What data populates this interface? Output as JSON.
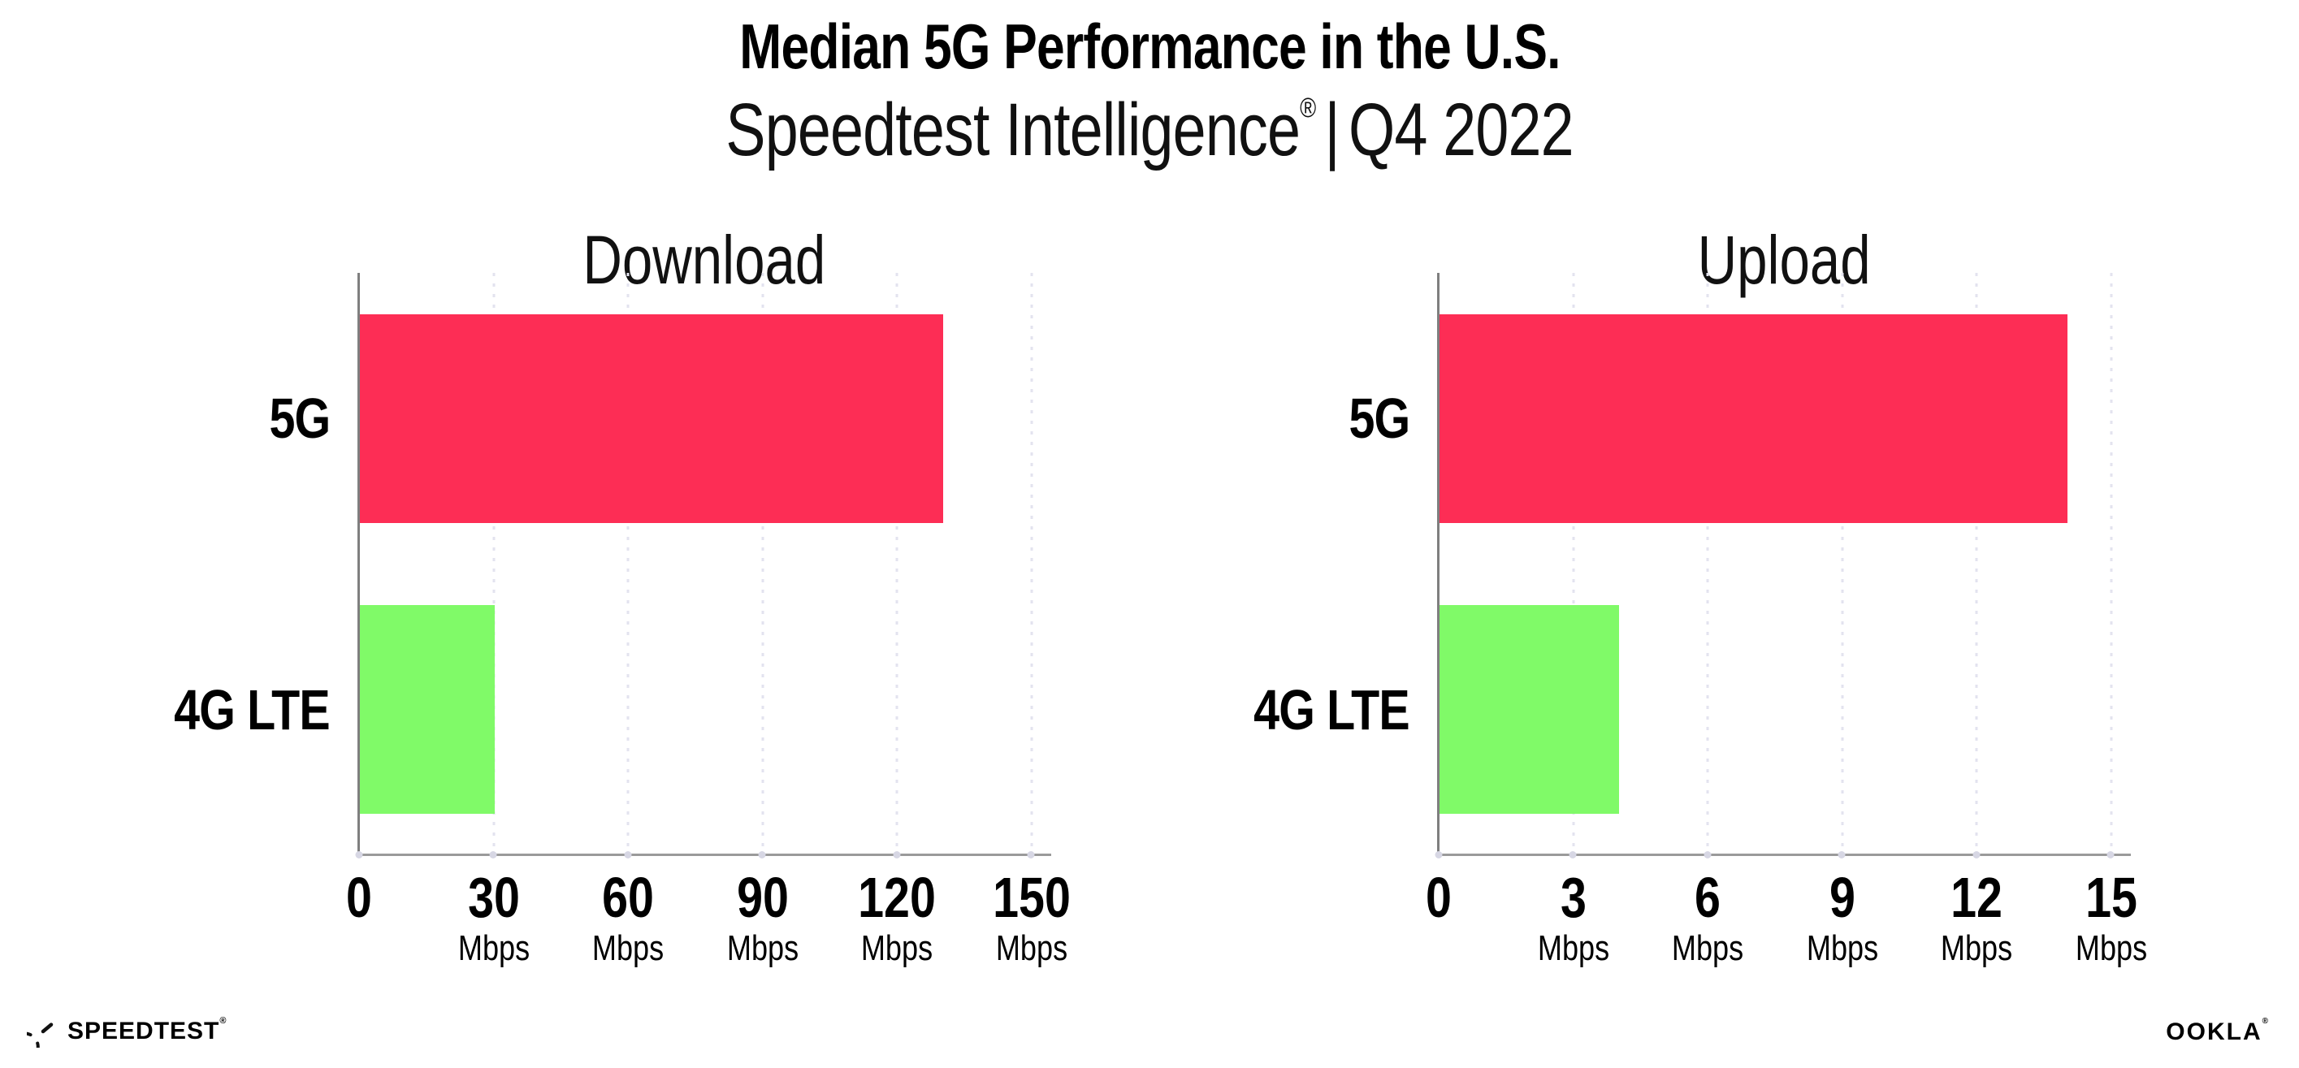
{
  "header": {
    "title": "Median 5G Performance in the U.S.",
    "subtitle_brand": "Speedtest Intelligence",
    "subtitle_reg": "®",
    "subtitle_sep": "|",
    "subtitle_period": "Q4 2022"
  },
  "chart_data": [
    {
      "type": "bar",
      "orientation": "horizontal",
      "title": "Download",
      "categories": [
        "5G",
        "4G LTE"
      ],
      "values": [
        130,
        30
      ],
      "unit": "Mbps",
      "xlim": [
        0,
        154
      ],
      "ticks": [
        0,
        30,
        60,
        90,
        120,
        150
      ],
      "bar_colors": [
        "#fd2d55",
        "#80fa68"
      ],
      "grid": "dotted-vertical",
      "legend": "none"
    },
    {
      "type": "bar",
      "orientation": "horizontal",
      "title": "Upload",
      "categories": [
        "5G",
        "4G LTE"
      ],
      "values": [
        14,
        4
      ],
      "unit": "Mbps",
      "xlim": [
        0,
        15.4
      ],
      "ticks": [
        0,
        3,
        6,
        9,
        12,
        15
      ],
      "bar_colors": [
        "#fd2d55",
        "#80fa68"
      ],
      "grid": "dotted-vertical",
      "legend": "none"
    }
  ],
  "footer": {
    "speedtest_label": "SPEEDTEST",
    "speedtest_reg": "®",
    "ookla_label": "OOKLA",
    "ookla_reg": "®"
  },
  "colors": {
    "bar_5g": "#fd2d55",
    "bar_4g_lte": "#80fa68",
    "axis": "#9a9a9a",
    "spine": "#7f7f7f",
    "gridline": "#e3e3ef",
    "text": "#000000"
  }
}
